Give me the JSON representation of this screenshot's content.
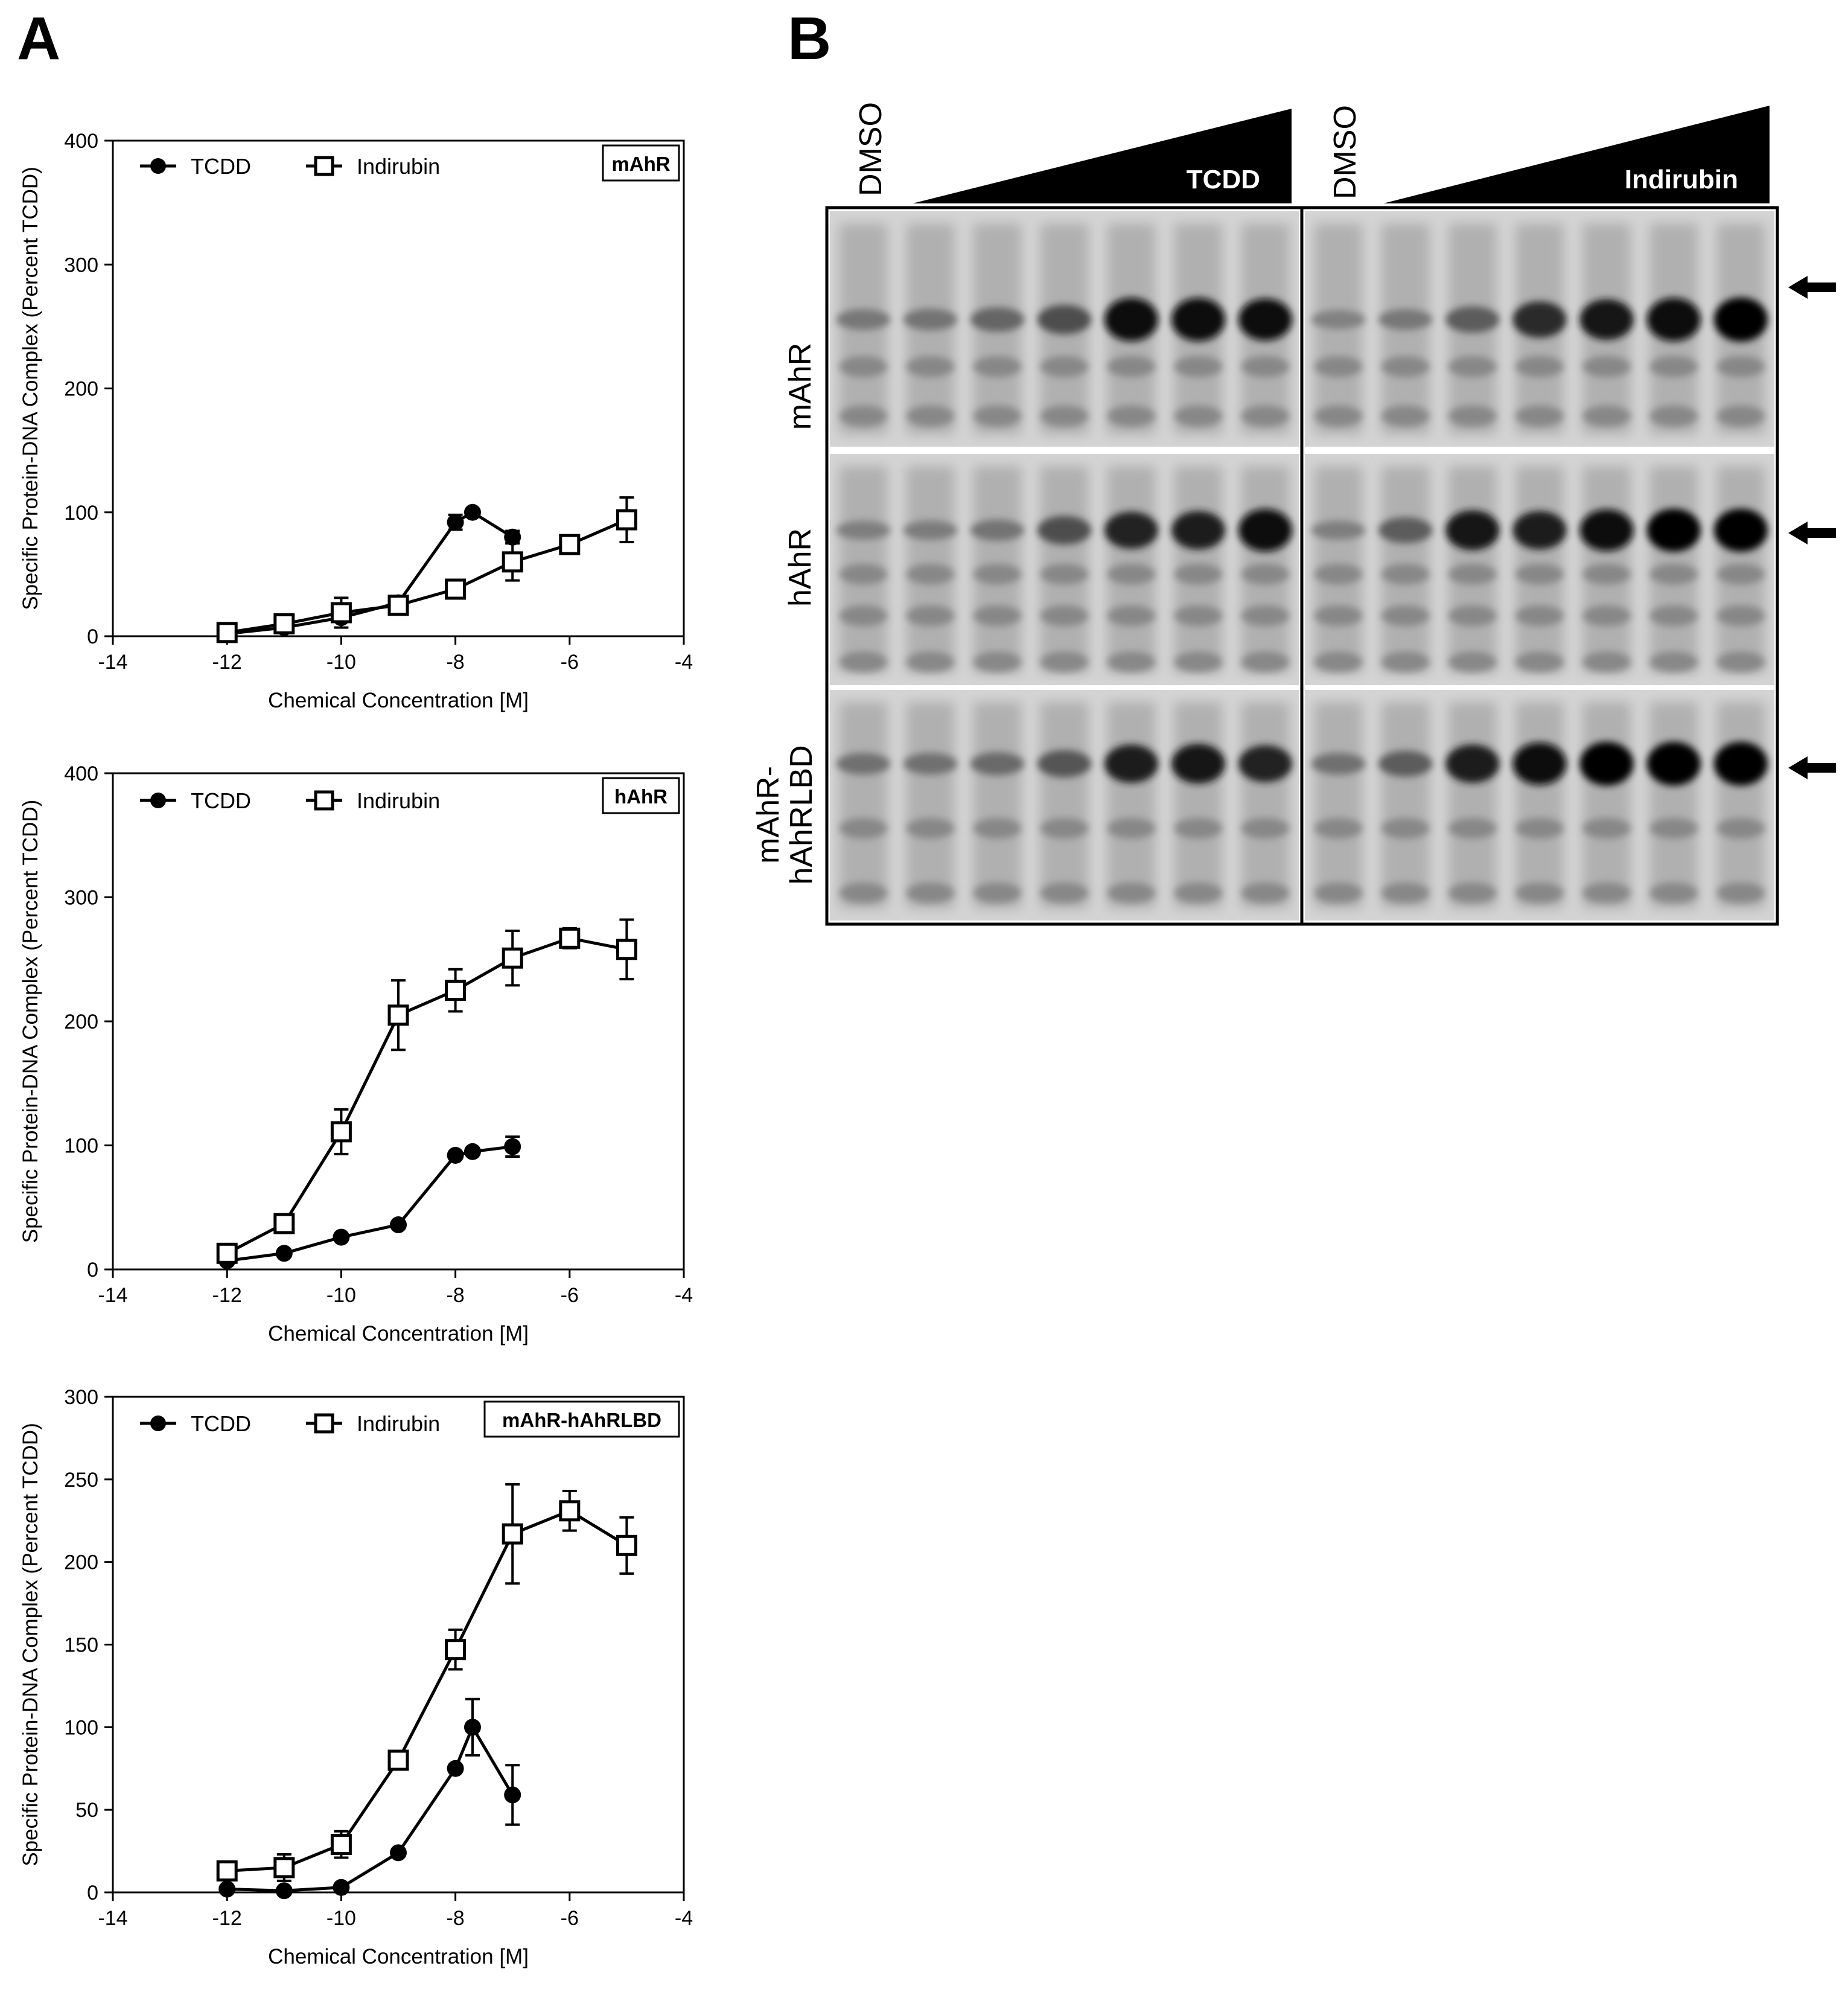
{
  "panel_labels": {
    "a": "A",
    "b": "B"
  },
  "chart_data": [
    {
      "type": "line",
      "panel_tag": "mAhR",
      "xlabel": "Chemical Concentration [M]",
      "ylabel": "Specific Protein-DNA Complex (Percent TCDD)",
      "xlim": [
        -14,
        -4
      ],
      "ylim": [
        0,
        400
      ],
      "xticks": [
        -14,
        -12,
        -10,
        -8,
        -6,
        -4
      ],
      "yticks": [
        0,
        100,
        200,
        300,
        400
      ],
      "legend_position": "top-left",
      "series": [
        {
          "name": "TCDD",
          "marker": "filled-circle",
          "x": [
            -12,
            -11,
            -10,
            -9,
            -8,
            -7.7,
            -7
          ],
          "y": [
            2,
            7,
            15,
            27,
            92,
            100,
            80
          ],
          "err": [
            0,
            0,
            0,
            0,
            6,
            0,
            5
          ]
        },
        {
          "name": "Indirubin",
          "marker": "open-square",
          "x": [
            -12,
            -11,
            -10,
            -9,
            -8,
            -7,
            -6,
            -5
          ],
          "y": [
            3,
            10,
            19,
            25,
            38,
            60,
            74,
            94
          ],
          "err": [
            0,
            0,
            12,
            0,
            0,
            15,
            7,
            18
          ]
        }
      ]
    },
    {
      "type": "line",
      "panel_tag": "hAhR",
      "xlabel": "Chemical Concentration [M]",
      "ylabel": "Specific Protein-DNA Complex (Percent TCDD)",
      "xlim": [
        -14,
        -4
      ],
      "ylim": [
        0,
        400
      ],
      "xticks": [
        -14,
        -12,
        -10,
        -8,
        -6,
        -4
      ],
      "yticks": [
        0,
        100,
        200,
        300,
        400
      ],
      "legend_position": "top-left",
      "series": [
        {
          "name": "TCDD",
          "marker": "filled-circle",
          "x": [
            -12,
            -11,
            -10,
            -9,
            -8,
            -7.7,
            -7
          ],
          "y": [
            7,
            13,
            26,
            36,
            92,
            95,
            99
          ],
          "err": [
            0,
            0,
            0,
            0,
            0,
            0,
            8
          ]
        },
        {
          "name": "Indirubin",
          "marker": "open-square",
          "x": [
            -12,
            -11,
            -10,
            -9,
            -8,
            -7,
            -6,
            -5
          ],
          "y": [
            13,
            37,
            111,
            205,
            225,
            251,
            267,
            258
          ],
          "err": [
            0,
            7,
            18,
            28,
            17,
            22,
            8,
            24
          ]
        }
      ]
    },
    {
      "type": "line",
      "panel_tag": "mAhR-hAhRLBD",
      "xlabel": "Chemical Concentration [M]",
      "ylabel": "Specific Protein-DNA Complex (Percent TCDD)",
      "xlim": [
        -14,
        -4
      ],
      "ylim": [
        0,
        300
      ],
      "xticks": [
        -14,
        -12,
        -10,
        -8,
        -6,
        -4
      ],
      "yticks": [
        0,
        50,
        100,
        150,
        200,
        250,
        300
      ],
      "legend_position": "top-left",
      "series": [
        {
          "name": "TCDD",
          "marker": "filled-circle",
          "x": [
            -12,
            -11,
            -10,
            -9,
            -8,
            -7.7,
            -7
          ],
          "y": [
            2,
            1,
            3,
            24,
            75,
            100,
            59
          ],
          "err": [
            0,
            0,
            0,
            0,
            0,
            17,
            18
          ]
        },
        {
          "name": "Indirubin",
          "marker": "open-square",
          "x": [
            -12,
            -11,
            -10,
            -9,
            -8,
            -7,
            -6,
            -5
          ],
          "y": [
            13,
            15,
            29,
            80,
            147,
            217,
            231,
            210
          ],
          "err": [
            0,
            8,
            8,
            0,
            12,
            30,
            12,
            17
          ]
        }
      ]
    }
  ],
  "gel": {
    "column_labels": [
      "DMSO",
      "DMSO"
    ],
    "gradient_labels": [
      "TCDD",
      "Indirubin"
    ],
    "row_labels": [
      "mAhR",
      "hAhR",
      "mAhR-",
      "hAhRLBD"
    ],
    "lanes_per_block": 7,
    "band_intensity": {
      "mAhR": {
        "TCDD": [
          0.15,
          0.18,
          0.28,
          0.45,
          0.95,
          0.95,
          0.9
        ],
        "Indirubin": [
          0.08,
          0.15,
          0.35,
          0.7,
          0.85,
          0.95,
          0.98
        ]
      },
      "hAhR": {
        "TCDD": [
          0.1,
          0.12,
          0.18,
          0.45,
          0.75,
          0.8,
          0.95
        ],
        "Indirubin": [
          0.1,
          0.35,
          0.85,
          0.8,
          0.92,
          0.97,
          0.97
        ]
      },
      "mAhR-hAhRLBD": {
        "TCDD": [
          0.2,
          0.2,
          0.25,
          0.4,
          0.8,
          0.85,
          0.75
        ],
        "Indirubin": [
          0.2,
          0.35,
          0.8,
          0.95,
          1.0,
          1.0,
          1.0
        ]
      }
    }
  }
}
